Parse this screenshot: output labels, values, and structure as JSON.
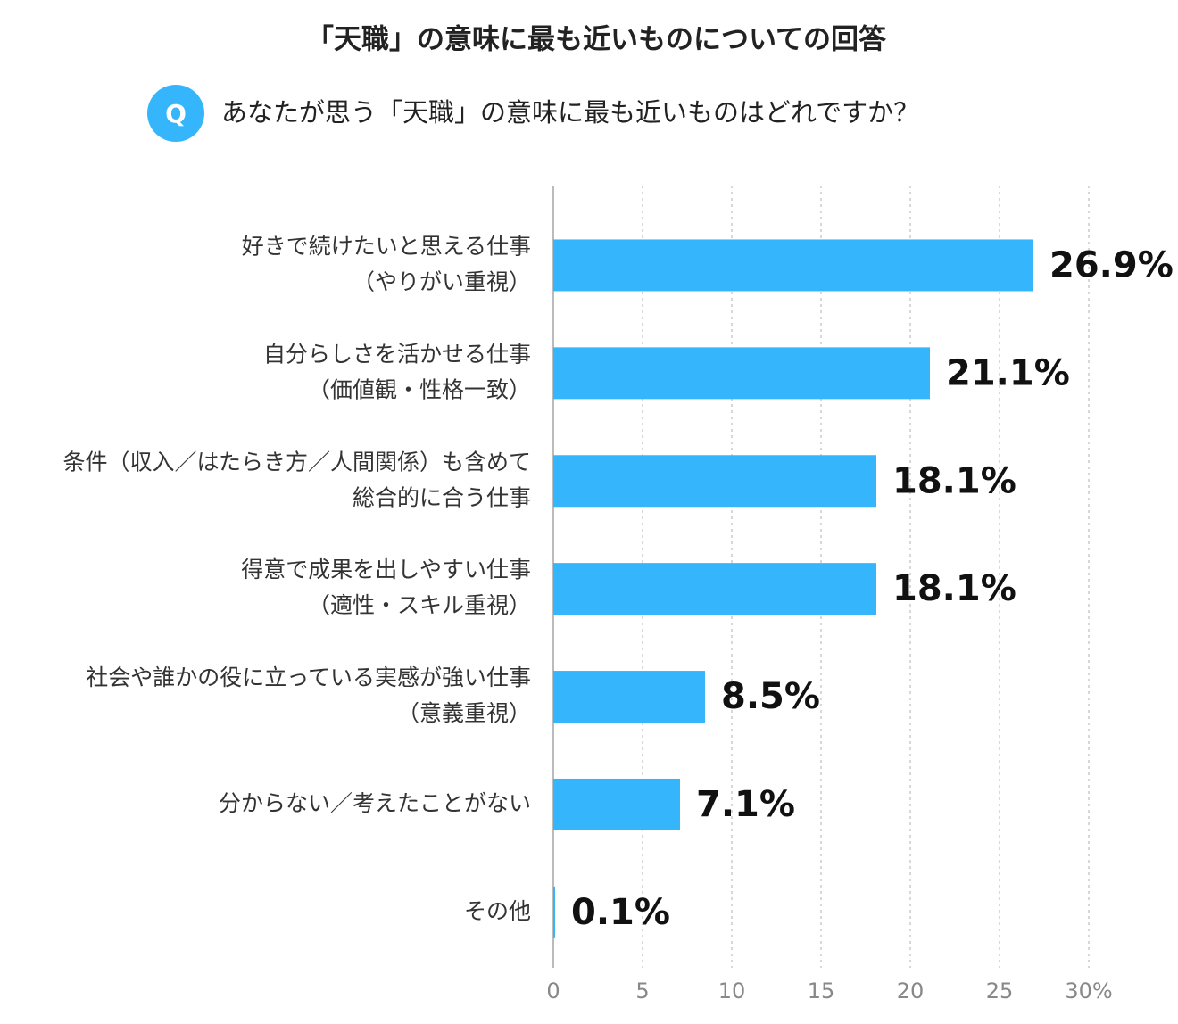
{
  "chart_data": {
    "type": "bar",
    "orientation": "horizontal",
    "title": "「天職」の意味に最も近いものについての回答",
    "question_badge": "Q",
    "question": "あなたが思う「天職」の意味に最も近いものはどれですか？",
    "categories": [
      [
        "好きで続けたいと思える仕事",
        "（やりがい重視）"
      ],
      [
        "自分らしさを活かせる仕事",
        "（価値観・性格一致）"
      ],
      [
        "条件（収入／はたらき方／人間関係）も含めて",
        "総合的に合う仕事"
      ],
      [
        "得意で成果を出しやすい仕事",
        "（適性・スキル重視）"
      ],
      [
        "社会や誰かの役に立っている実感が強い仕事",
        "（意義重視）"
      ],
      [
        "分からない／考えたことがない"
      ],
      [
        "その他"
      ]
    ],
    "values": [
      26.9,
      21.1,
      18.1,
      18.1,
      8.5,
      7.1,
      0.1
    ],
    "value_labels": [
      "26.9%",
      "21.1%",
      "18.1%",
      "18.1%",
      "8.5%",
      "7.1%",
      "0.1%"
    ],
    "color": "#35b6fc",
    "xlim": [
      0,
      30
    ],
    "xticks": [
      0,
      5,
      10,
      15,
      20,
      25,
      {
        "value": 30,
        "label": "30%"
      }
    ],
    "grid": true
  }
}
